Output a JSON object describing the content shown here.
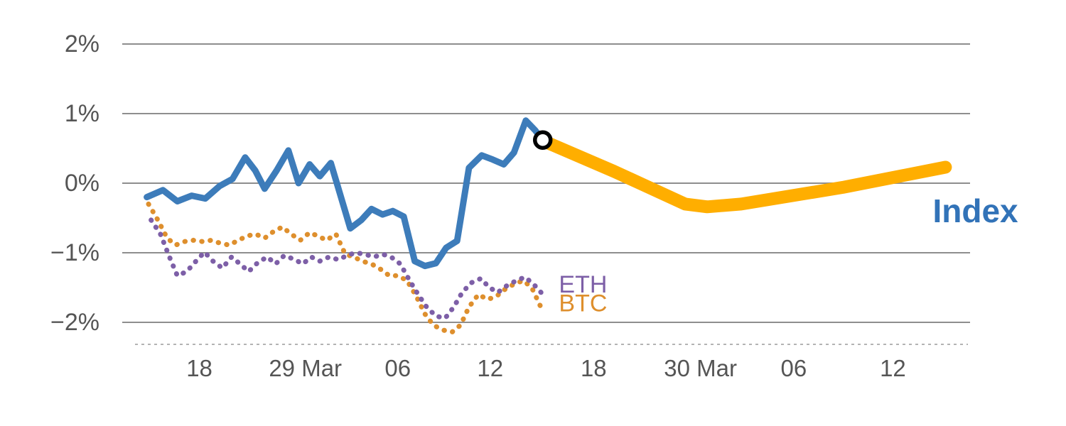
{
  "chart_data": {
    "type": "line",
    "title": "",
    "xlabel": "",
    "ylabel": "",
    "grid": true,
    "legend_position": "inline-end-of-line",
    "x_unit": "fraction of plot width (dates mid-March to mid-May)",
    "ylim": [
      -2.35,
      2.3
    ],
    "y_ticks": [
      {
        "value": 2,
        "label": "2%"
      },
      {
        "value": 1,
        "label": "1%"
      },
      {
        "value": 0,
        "label": "0%"
      },
      {
        "value": -1,
        "label": "−1%"
      },
      {
        "value": -2,
        "label": "−2%"
      }
    ],
    "x_ticks": [
      {
        "pos": 0.091,
        "label": "18"
      },
      {
        "pos": 0.216,
        "label": "29 Mar"
      },
      {
        "pos": 0.325,
        "label": "06"
      },
      {
        "pos": 0.434,
        "label": "12"
      },
      {
        "pos": 0.556,
        "label": "18"
      },
      {
        "pos": 0.682,
        "label": "30 Mar"
      },
      {
        "pos": 0.792,
        "label": "06"
      },
      {
        "pos": 0.909,
        "label": "12"
      }
    ],
    "series": [
      {
        "id": "btc",
        "name": "BTC",
        "color": "#de8f2d",
        "style": "dotted",
        "width": 7,
        "points": [
          [
            0.031,
            -0.3
          ],
          [
            0.042,
            -0.53
          ],
          [
            0.053,
            -0.79
          ],
          [
            0.063,
            -0.89
          ],
          [
            0.073,
            -0.84
          ],
          [
            0.084,
            -0.82
          ],
          [
            0.095,
            -0.84
          ],
          [
            0.105,
            -0.82
          ],
          [
            0.115,
            -0.86
          ],
          [
            0.126,
            -0.89
          ],
          [
            0.137,
            -0.82
          ],
          [
            0.147,
            -0.76
          ],
          [
            0.157,
            -0.73
          ],
          [
            0.168,
            -0.79
          ],
          [
            0.179,
            -0.69
          ],
          [
            0.189,
            -0.63
          ],
          [
            0.199,
            -0.73
          ],
          [
            0.21,
            -0.82
          ],
          [
            0.221,
            -0.71
          ],
          [
            0.231,
            -0.76
          ],
          [
            0.241,
            -0.82
          ],
          [
            0.252,
            -0.73
          ],
          [
            0.263,
            -1.02
          ],
          [
            0.273,
            -1.06
          ],
          [
            0.283,
            -1.12
          ],
          [
            0.294,
            -1.16
          ],
          [
            0.305,
            -1.24
          ],
          [
            0.315,
            -1.33
          ],
          [
            0.325,
            -1.33
          ],
          [
            0.336,
            -1.4
          ],
          [
            0.347,
            -1.63
          ],
          [
            0.357,
            -1.88
          ],
          [
            0.367,
            -2.04
          ],
          [
            0.378,
            -2.11
          ],
          [
            0.389,
            -2.14
          ],
          [
            0.399,
            -2.04
          ],
          [
            0.409,
            -1.78
          ],
          [
            0.42,
            -1.6
          ],
          [
            0.431,
            -1.67
          ],
          [
            0.441,
            -1.63
          ],
          [
            0.451,
            -1.53
          ],
          [
            0.462,
            -1.45
          ],
          [
            0.473,
            -1.4
          ],
          [
            0.483,
            -1.5
          ],
          [
            0.493,
            -1.76
          ]
        ]
      },
      {
        "id": "eth",
        "name": "ETH",
        "color": "#7d5fa7",
        "style": "dotted",
        "width": 7,
        "points": [
          [
            0.034,
            -0.53
          ],
          [
            0.045,
            -0.73
          ],
          [
            0.055,
            -1.04
          ],
          [
            0.065,
            -1.33
          ],
          [
            0.076,
            -1.27
          ],
          [
            0.087,
            -1.12
          ],
          [
            0.097,
            -0.99
          ],
          [
            0.107,
            -1.12
          ],
          [
            0.118,
            -1.22
          ],
          [
            0.129,
            -1.06
          ],
          [
            0.139,
            -1.16
          ],
          [
            0.149,
            -1.27
          ],
          [
            0.16,
            -1.14
          ],
          [
            0.171,
            -1.06
          ],
          [
            0.181,
            -1.16
          ],
          [
            0.191,
            -1.04
          ],
          [
            0.202,
            -1.09
          ],
          [
            0.213,
            -1.16
          ],
          [
            0.223,
            -1.06
          ],
          [
            0.233,
            -1.12
          ],
          [
            0.244,
            -1.06
          ],
          [
            0.255,
            -1.1
          ],
          [
            0.265,
            -1.04
          ],
          [
            0.275,
            -1.0
          ],
          [
            0.286,
            -1.02
          ],
          [
            0.297,
            -1.06
          ],
          [
            0.307,
            -1.02
          ],
          [
            0.317,
            -1.06
          ],
          [
            0.328,
            -1.16
          ],
          [
            0.339,
            -1.4
          ],
          [
            0.349,
            -1.6
          ],
          [
            0.359,
            -1.78
          ],
          [
            0.37,
            -1.91
          ],
          [
            0.381,
            -1.94
          ],
          [
            0.391,
            -1.78
          ],
          [
            0.401,
            -1.57
          ],
          [
            0.412,
            -1.43
          ],
          [
            0.423,
            -1.37
          ],
          [
            0.433,
            -1.5
          ],
          [
            0.443,
            -1.57
          ],
          [
            0.454,
            -1.47
          ],
          [
            0.465,
            -1.4
          ],
          [
            0.475,
            -1.35
          ],
          [
            0.485,
            -1.45
          ],
          [
            0.494,
            -1.57
          ]
        ]
      },
      {
        "id": "index-history",
        "name": "Index (history)",
        "color": "#3d7cba",
        "style": "solid",
        "width": 9,
        "points": [
          [
            0.029,
            -0.2
          ],
          [
            0.048,
            -0.1
          ],
          [
            0.065,
            -0.26
          ],
          [
            0.082,
            -0.18
          ],
          [
            0.098,
            -0.22
          ],
          [
            0.115,
            -0.04
          ],
          [
            0.13,
            0.06
          ],
          [
            0.145,
            0.37
          ],
          [
            0.157,
            0.18
          ],
          [
            0.168,
            -0.08
          ],
          [
            0.182,
            0.18
          ],
          [
            0.196,
            0.47
          ],
          [
            0.208,
            0.0
          ],
          [
            0.221,
            0.27
          ],
          [
            0.233,
            0.1
          ],
          [
            0.246,
            0.29
          ],
          [
            0.258,
            -0.2
          ],
          [
            0.269,
            -0.65
          ],
          [
            0.282,
            -0.53
          ],
          [
            0.294,
            -0.37
          ],
          [
            0.307,
            -0.45
          ],
          [
            0.319,
            -0.4
          ],
          [
            0.332,
            -0.48
          ],
          [
            0.345,
            -1.12
          ],
          [
            0.357,
            -1.19
          ],
          [
            0.37,
            -1.15
          ],
          [
            0.382,
            -0.93
          ],
          [
            0.395,
            -0.83
          ],
          [
            0.409,
            0.22
          ],
          [
            0.424,
            0.4
          ],
          [
            0.437,
            0.34
          ],
          [
            0.45,
            0.27
          ],
          [
            0.462,
            0.44
          ],
          [
            0.476,
            0.9
          ],
          [
            0.487,
            0.76
          ],
          [
            0.496,
            0.62
          ]
        ]
      },
      {
        "id": "index-forecast",
        "name": "Index (forecast)",
        "color": "#ffae00",
        "style": "solid",
        "width": 18,
        "points": [
          [
            0.496,
            0.61
          ],
          [
            0.58,
            0.17
          ],
          [
            0.664,
            -0.3
          ],
          [
            0.69,
            -0.34
          ],
          [
            0.73,
            -0.3
          ],
          [
            0.85,
            -0.06
          ],
          [
            0.971,
            0.23
          ]
        ]
      }
    ],
    "marker": {
      "name": "forecast-start-marker",
      "pos": 0.496,
      "value": 0.62,
      "radius": 11,
      "stroke": "#000000",
      "stroke_width": 5.5,
      "fill": "#ffffff"
    },
    "inline_labels": [
      {
        "id": "index",
        "text": "Index",
        "color": "#3273b8",
        "pos": 0.956,
        "value": -0.4,
        "size": 46,
        "bold": true
      },
      {
        "id": "eth",
        "text": "ETH",
        "color": "#7d5fa7",
        "pos": 0.515,
        "value": -1.46,
        "size": 34,
        "bold": false
      },
      {
        "id": "btc",
        "text": "BTC",
        "color": "#de8f2d",
        "pos": 0.515,
        "value": -1.73,
        "size": 34,
        "bold": false
      }
    ],
    "colors": {
      "grid": "#8e8e8e",
      "axis_dashed": "#9a9a9a",
      "tick_labels": "#555555",
      "background": "#ffffff"
    }
  }
}
